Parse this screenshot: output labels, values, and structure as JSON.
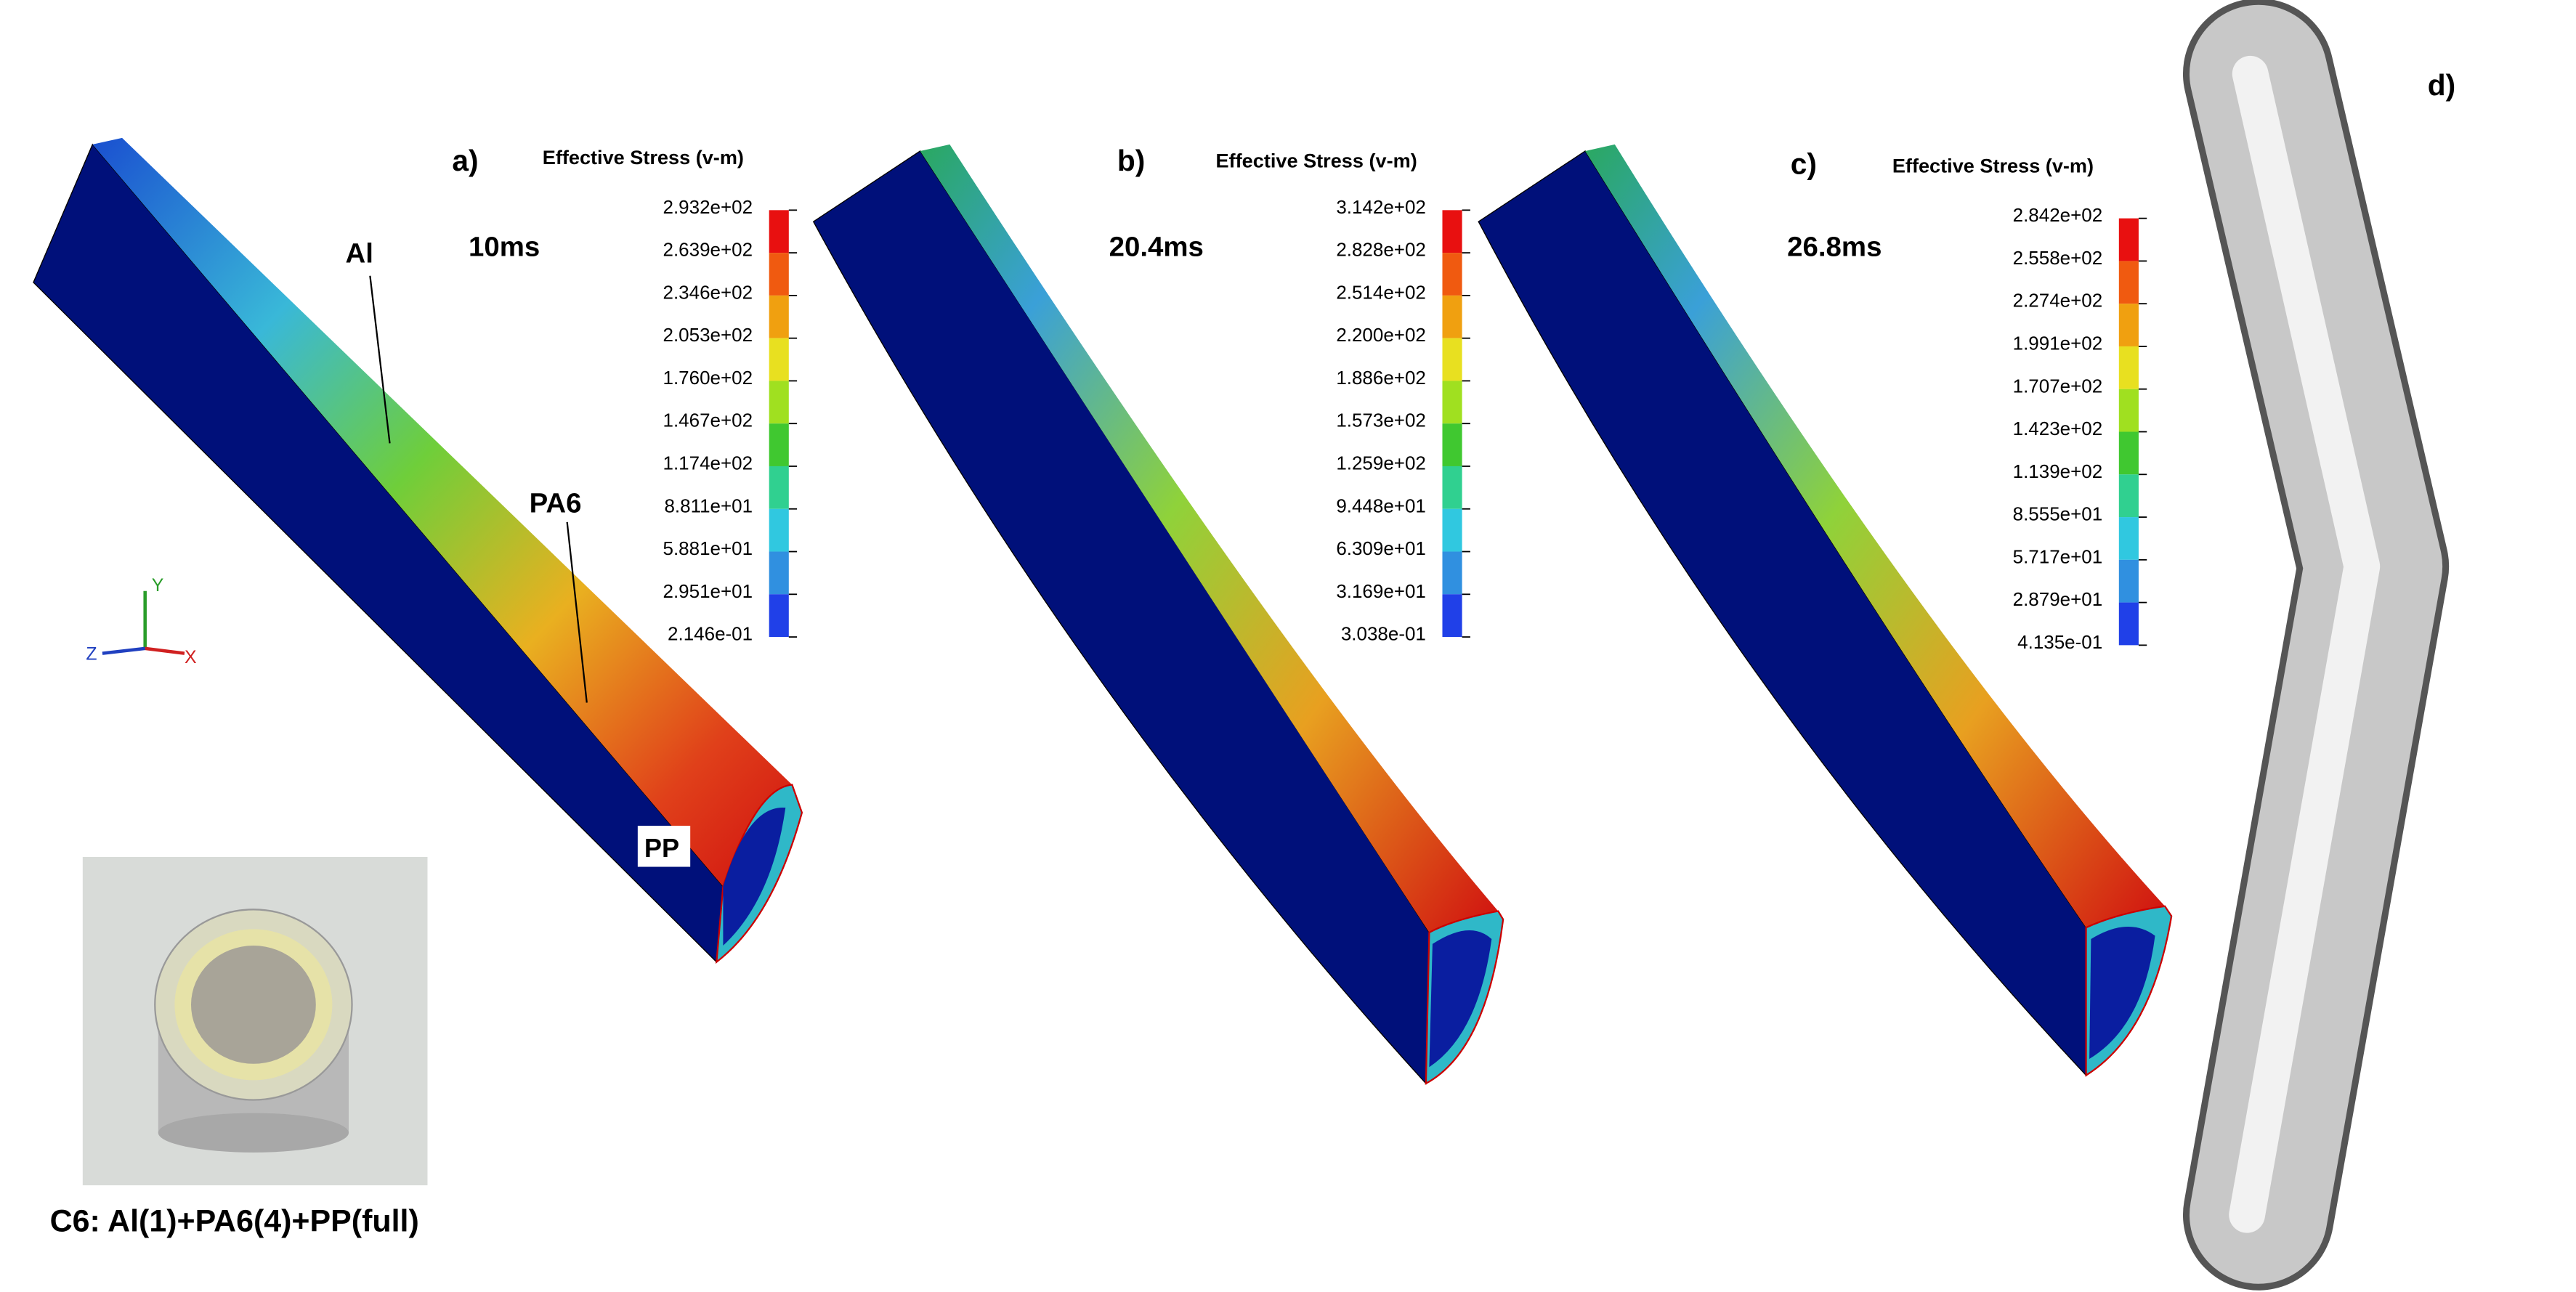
{
  "panels": [
    {
      "label": "a)",
      "time": "10ms",
      "legend": {
        "title": "Effective Stress (v-m)",
        "values": [
          "2.932e+02",
          "2.639e+02",
          "2.346e+02",
          "2.053e+02",
          "1.760e+02",
          "1.467e+02",
          "1.174e+02",
          "8.811e+01",
          "5.881e+01",
          "2.951e+01",
          "2.146e-01"
        ]
      }
    },
    {
      "label": "b)",
      "time": "20.4ms",
      "legend": {
        "title": "Effective Stress (v-m)",
        "values": [
          "3.142e+02",
          "2.828e+02",
          "2.514e+02",
          "2.200e+02",
          "1.886e+02",
          "1.573e+02",
          "1.259e+02",
          "9.448e+01",
          "6.309e+01",
          "3.169e+01",
          "3.038e-01"
        ]
      }
    },
    {
      "label": "c)",
      "time": "26.8ms",
      "legend": {
        "title": "Effective Stress (v-m)",
        "values": [
          "2.842e+02",
          "2.558e+02",
          "2.274e+02",
          "1.991e+02",
          "1.707e+02",
          "1.423e+02",
          "1.139e+02",
          "8.555e+01",
          "5.717e+01",
          "2.879e+01",
          "4.135e-01"
        ]
      }
    }
  ],
  "photo_label": "d)",
  "annotations": {
    "al": "Al",
    "pa6": "PA6",
    "pp": "PP"
  },
  "axes": {
    "y": "Y",
    "z": "Z",
    "x": "X"
  },
  "photo_caption": "C6: Al(1)+PA6(4)+PP(full)"
}
